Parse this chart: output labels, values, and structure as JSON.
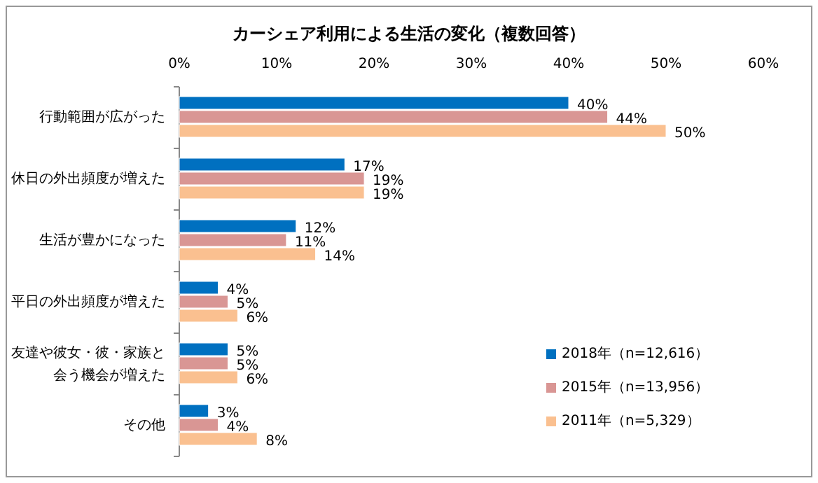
{
  "chart_data": {
    "type": "bar",
    "orientation": "horizontal",
    "title": "カーシェア利用による生活の変化（複数回答）",
    "categories": [
      "行動範囲が広がった",
      "休日の外出頻度が増えた",
      "生活が豊かになった",
      "平日の外出頻度が増えた",
      "友達や彼女・彼・家族と会う機会が増えた",
      "その他"
    ],
    "series": [
      {
        "name": "2018年（n=12,616）",
        "color": "#0070c0",
        "values": [
          40,
          17,
          12,
          4,
          5,
          3
        ],
        "value_labels": [
          "40%",
          "17%",
          "12%",
          "4%",
          "5%",
          "3%"
        ]
      },
      {
        "name": "2015年（n=13,956）",
        "color": "#d99694",
        "values": [
          44,
          19,
          11,
          5,
          5,
          4
        ],
        "value_labels": [
          "44%",
          "19%",
          "11%",
          "5%",
          "5%",
          "4%"
        ]
      },
      {
        "name": "2011年（n=5,329）",
        "color": "#fac090",
        "values": [
          50,
          19,
          14,
          6,
          6,
          8
        ],
        "value_labels": [
          "50%",
          "19%",
          "14%",
          "6%",
          "6%",
          "8%"
        ]
      }
    ],
    "xlim": [
      0,
      60
    ],
    "xticks": [
      {
        "value": 0,
        "label": "0%"
      },
      {
        "value": 10,
        "label": "10%"
      },
      {
        "value": 20,
        "label": "20%"
      },
      {
        "value": 30,
        "label": "30%"
      },
      {
        "value": 40,
        "label": "40%"
      },
      {
        "value": 50,
        "label": "50%"
      },
      {
        "value": 60,
        "label": "60%"
      }
    ],
    "grid": false,
    "legend": "bottom right"
  }
}
